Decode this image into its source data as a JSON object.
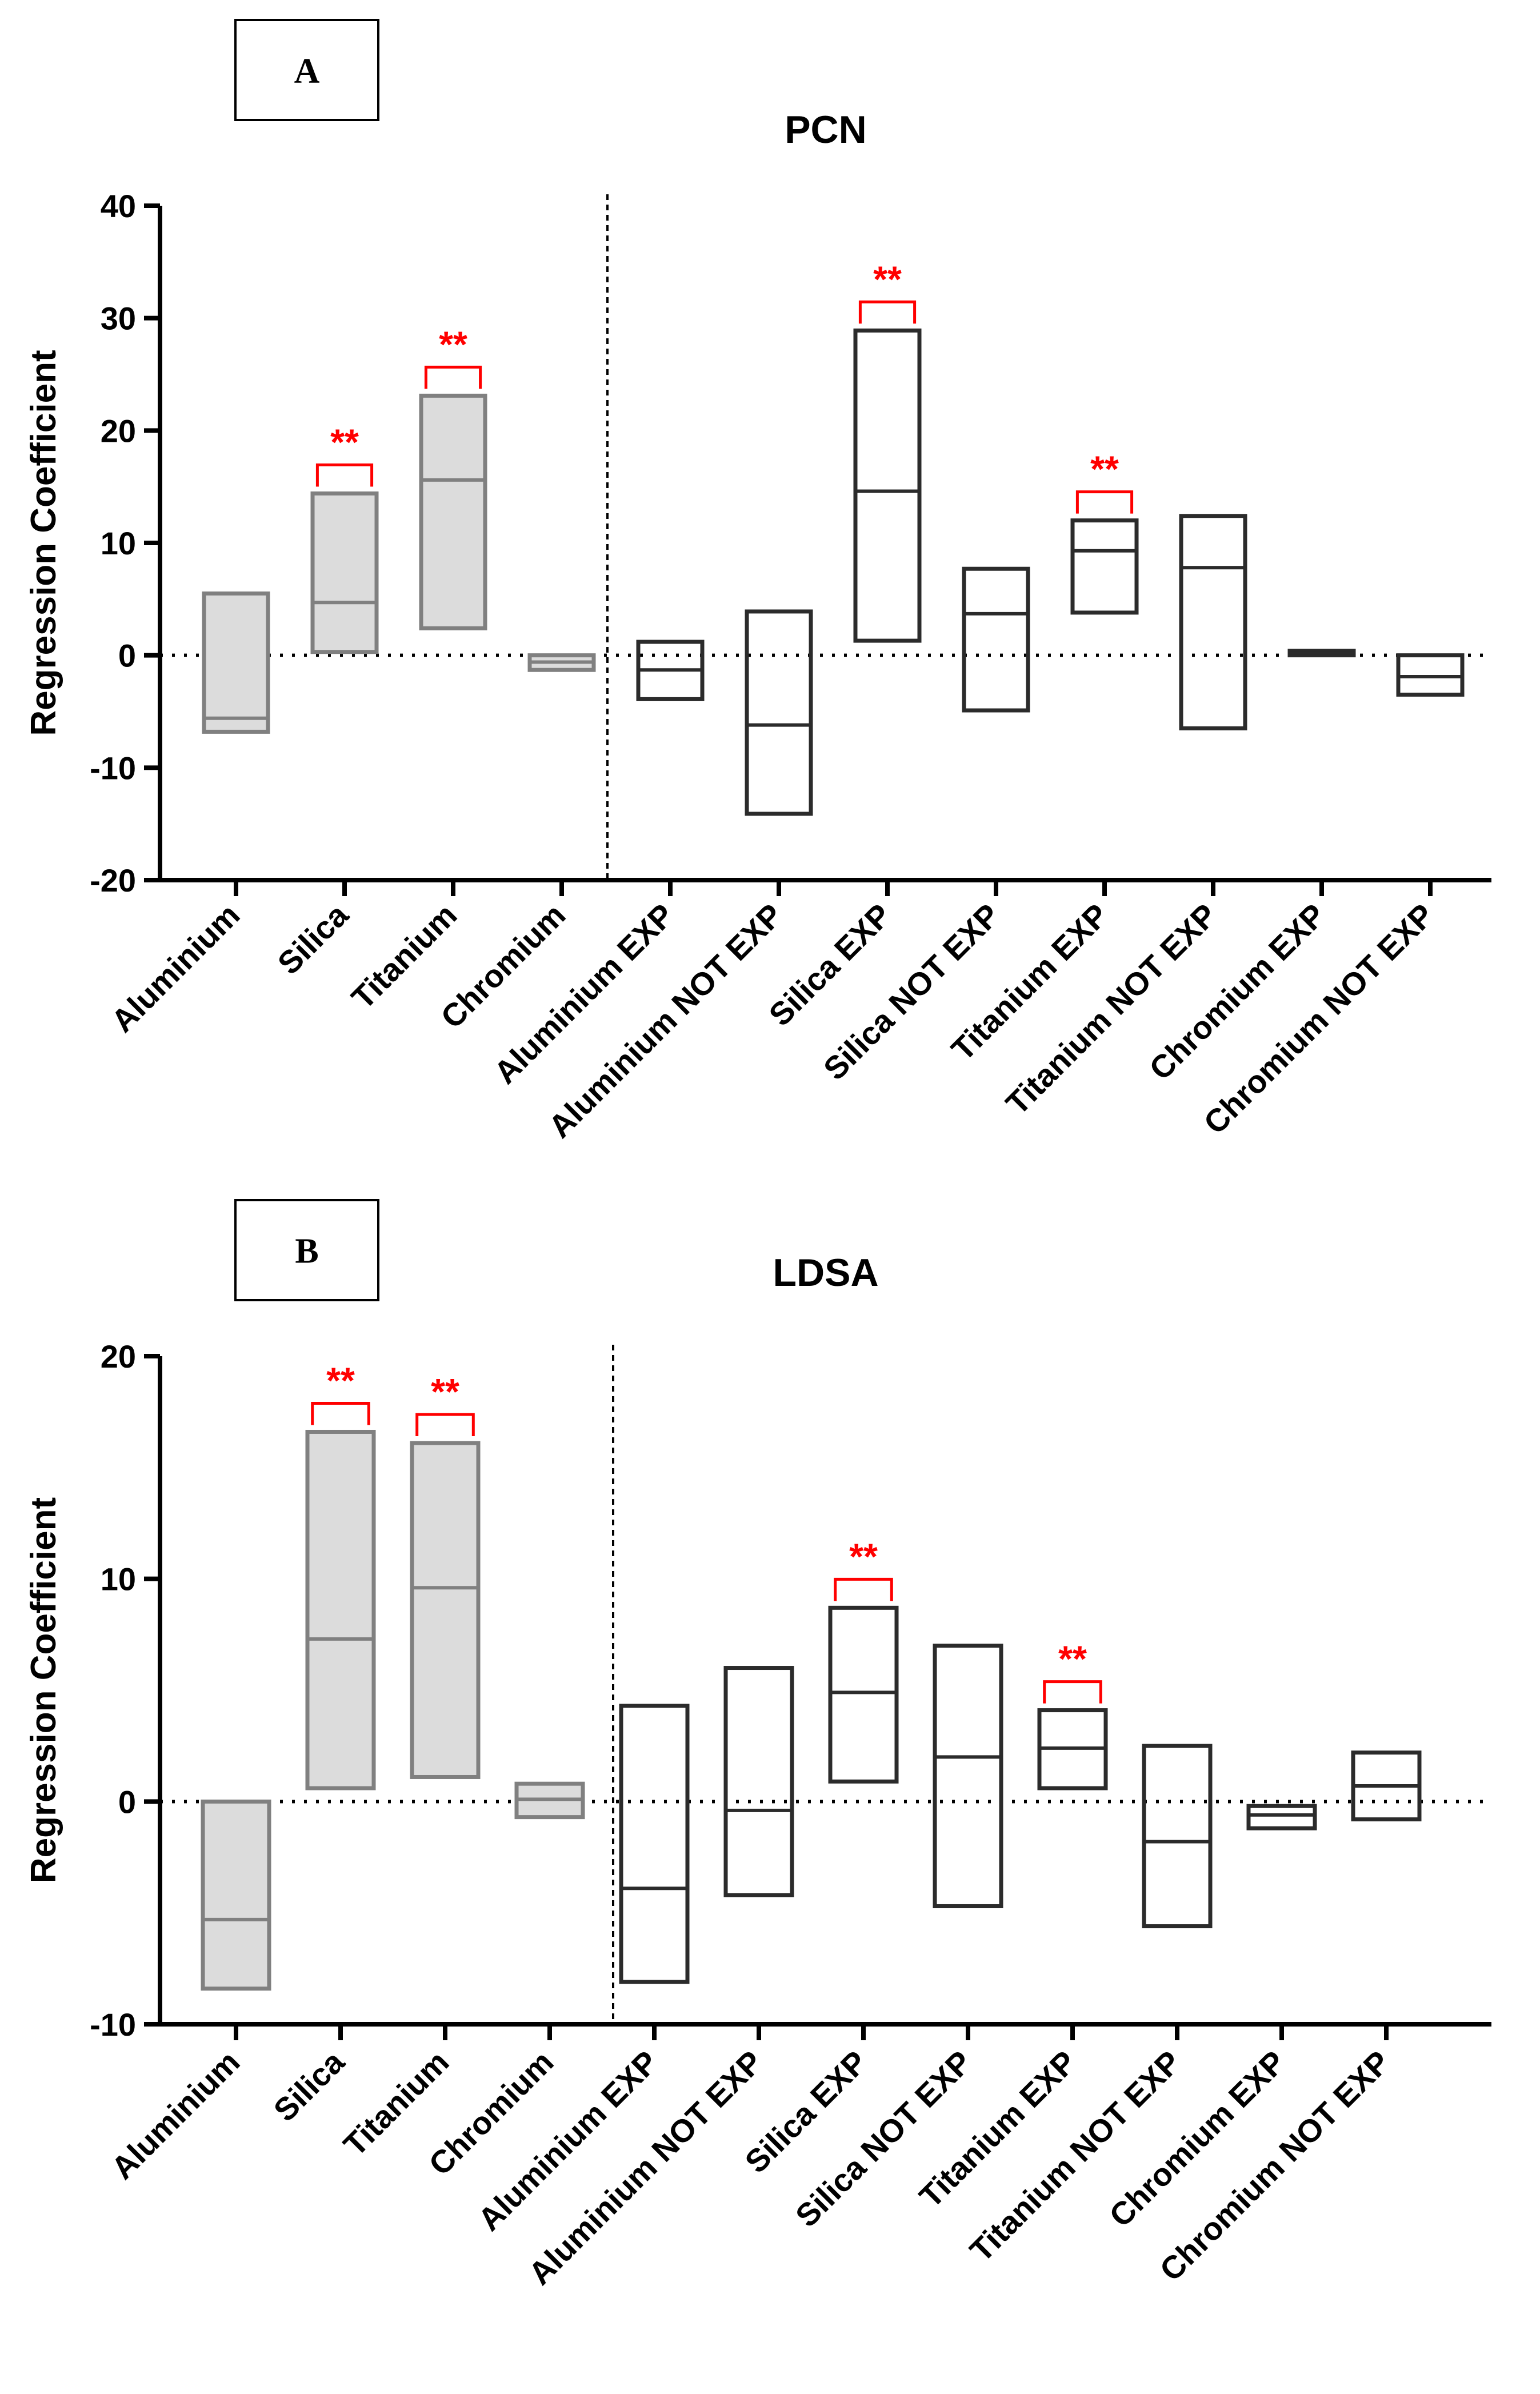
{
  "chart_data": [
    {
      "panel_label": "A",
      "type": "floating-bar",
      "title": "PCN",
      "ylabel": "Regression  Coefficient",
      "ylim": [
        -20,
        40
      ],
      "yticks": [
        -20,
        -10,
        0,
        10,
        20,
        30,
        40
      ],
      "reference_line": 0,
      "categories": [
        "Aluminium",
        "Silica",
        "Titanium",
        "Chromium",
        "Aluminium EXP",
        "Aluminium NOT EXP",
        "Silica EXP",
        "Silica NOT EXP",
        "Titanium EXP",
        "Titanium NOT EXP",
        "Chromium EXP",
        "Chromium NOT EXP"
      ],
      "group_divider_after": 4,
      "series": [
        {
          "low": -6.8,
          "mid": -5.6,
          "high": 5.5,
          "style": "grey",
          "sig": ""
        },
        {
          "low": 0.3,
          "mid": 4.7,
          "high": 14.4,
          "style": "grey",
          "sig": "**"
        },
        {
          "low": 2.4,
          "mid": 15.6,
          "high": 23.1,
          "style": "grey",
          "sig": "**"
        },
        {
          "low": -1.3,
          "mid": -0.6,
          "high": 0.0,
          "style": "grey",
          "sig": ""
        },
        {
          "low": -3.9,
          "mid": -1.3,
          "high": 1.2,
          "style": "dark",
          "sig": ""
        },
        {
          "low": -14.1,
          "mid": -6.2,
          "high": 3.9,
          "style": "dark",
          "sig": ""
        },
        {
          "low": 1.3,
          "mid": 14.6,
          "high": 28.9,
          "style": "dark",
          "sig": "**"
        },
        {
          "low": -4.9,
          "mid": 3.7,
          "high": 7.7,
          "style": "dark",
          "sig": ""
        },
        {
          "low": 3.8,
          "mid": 9.3,
          "high": 12.0,
          "style": "dark",
          "sig": "**"
        },
        {
          "low": -6.5,
          "mid": 7.8,
          "high": 12.4,
          "style": "dark",
          "sig": ""
        },
        {
          "low": 0.0,
          "mid": 0.2,
          "high": 0.4,
          "style": "dark",
          "sig": ""
        },
        {
          "low": -3.5,
          "mid": -1.9,
          "high": 0.0,
          "style": "dark",
          "sig": ""
        }
      ],
      "sig_color": "#ff0000"
    },
    {
      "panel_label": "B",
      "type": "floating-bar",
      "title": "LDSA",
      "ylabel": "Regression  Coefficient",
      "ylim": [
        -10,
        20
      ],
      "yticks": [
        -10,
        0,
        10,
        20
      ],
      "reference_line": 0,
      "categories": [
        "Aluminium",
        "Silica",
        "Titanium",
        "Chromium",
        "Aluminium EXP",
        "Aluminium NOT EXP",
        "Silica EXP",
        "Silica NOT EXP",
        "Titanium EXP",
        "Titanium NOT EXP",
        "Chromium EXP",
        "Chromium NOT EXP"
      ],
      "group_divider_after": 4,
      "series": [
        {
          "low": -8.4,
          "mid": -5.3,
          "high": 0.0,
          "style": "grey",
          "sig": ""
        },
        {
          "low": 0.6,
          "mid": 7.3,
          "high": 16.6,
          "style": "grey",
          "sig": "**"
        },
        {
          "low": 1.1,
          "mid": 9.6,
          "high": 16.1,
          "style": "grey",
          "sig": "**"
        },
        {
          "low": -0.7,
          "mid": 0.1,
          "high": 0.8,
          "style": "grey",
          "sig": ""
        },
        {
          "low": -8.1,
          "mid": -3.9,
          "high": 4.3,
          "style": "dark",
          "sig": ""
        },
        {
          "low": -4.2,
          "mid": -0.4,
          "high": 6.0,
          "style": "dark",
          "sig": ""
        },
        {
          "low": 0.9,
          "mid": 4.9,
          "high": 8.7,
          "style": "dark",
          "sig": "**"
        },
        {
          "low": -4.7,
          "mid": 2.0,
          "high": 7.0,
          "style": "dark",
          "sig": ""
        },
        {
          "low": 0.6,
          "mid": 2.4,
          "high": 4.1,
          "style": "dark",
          "sig": "**"
        },
        {
          "low": -5.6,
          "mid": -1.8,
          "high": 2.5,
          "style": "dark",
          "sig": ""
        },
        {
          "low": -1.2,
          "mid": -0.6,
          "high": -0.2,
          "style": "dark",
          "sig": ""
        },
        {
          "low": -0.8,
          "mid": 0.7,
          "high": 2.2,
          "style": "dark",
          "sig": ""
        }
      ],
      "sig_color": "#ff0000"
    }
  ]
}
